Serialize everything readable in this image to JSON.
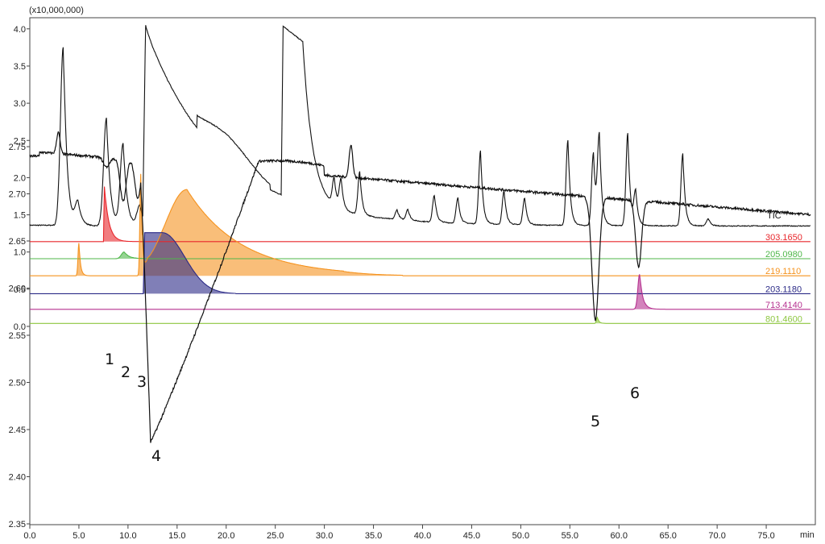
{
  "chart_data": {
    "type": "line",
    "scale_label": "(x10,000,000)",
    "x_unit": "min",
    "xlim": [
      0,
      80
    ],
    "x_ticks": [
      "0.0",
      "5.0",
      "10.0",
      "15.0",
      "20.0",
      "25.0",
      "30.0",
      "35.0",
      "40.0",
      "45.0",
      "50.0",
      "55.0",
      "60.0",
      "65.0",
      "70.0",
      "75.0"
    ],
    "y_upper_ticks": [
      "0.0",
      "0.5",
      "1.0",
      "1.5",
      "2.0",
      "2.5",
      "3.0",
      "3.5",
      "4.0"
    ],
    "y_lower_ticks": [
      "2.35",
      "2.40",
      "2.45",
      "2.50",
      "2.55",
      "2.60",
      "2.65",
      "2.70",
      "2.75"
    ],
    "tic": {
      "name": "TIC",
      "color": "#111111",
      "baseline": 1.35,
      "peaks": [
        {
          "x": 3.4,
          "y": 3.75
        },
        {
          "x": 4.9,
          "y": 1.65
        },
        {
          "x": 7.8,
          "y": 2.8
        },
        {
          "x": 9.5,
          "y": 2.45
        },
        {
          "x": 11.2,
          "y": 1.62
        },
        {
          "x": 31.0,
          "y": 1.72
        },
        {
          "x": 31.7,
          "y": 1.74
        },
        {
          "x": 33.6,
          "y": 1.93
        },
        {
          "x": 37.4,
          "y": 1.48
        },
        {
          "x": 38.5,
          "y": 1.5
        },
        {
          "x": 41.2,
          "y": 1.71
        },
        {
          "x": 43.6,
          "y": 1.69
        },
        {
          "x": 45.9,
          "y": 2.33
        },
        {
          "x": 48.3,
          "y": 1.8
        },
        {
          "x": 50.4,
          "y": 1.71
        },
        {
          "x": 54.8,
          "y": 2.5
        },
        {
          "x": 57.4,
          "y": 2.33
        },
        {
          "x": 58.0,
          "y": 2.53
        },
        {
          "x": 60.9,
          "y": 2.6
        },
        {
          "x": 61.7,
          "y": 1.8
        },
        {
          "x": 66.5,
          "y": 2.32
        },
        {
          "x": 69.1,
          "y": 1.45
        }
      ],
      "plateaus": [
        {
          "start": 11.5,
          "top": 4.1,
          "description": "tail decays to 1.4 by 24.5"
        },
        {
          "start": 25.8,
          "top": 3.63,
          "end": 27.8,
          "decay_end": 31.0
        }
      ]
    },
    "series": [
      {
        "name": "303.1650",
        "color": "#e8262b",
        "baseline": 1.14,
        "peaks": [
          {
            "x": 7.7,
            "y": 1.88
          }
        ]
      },
      {
        "name": "205.0980",
        "color": "#4fb74a",
        "baseline": 0.91,
        "peaks": [
          {
            "x": 9.6,
            "y": 1.0
          }
        ]
      },
      {
        "name": "219.1110",
        "color": "#f5931f",
        "baseline": 0.68,
        "peaks": [
          {
            "x": 5.0,
            "y": 1.12
          },
          {
            "x": 11.3,
            "y": 2.05
          },
          {
            "x": 16.0,
            "y": 1.84
          }
        ]
      },
      {
        "name": "203.1180",
        "color": "#2b2a87",
        "baseline": 0.44,
        "peaks": [
          {
            "x": 13.5,
            "y": 1.26
          }
        ]
      },
      {
        "name": "713.4140",
        "color": "#b5318f",
        "baseline": 0.23,
        "peaks": [
          {
            "x": 62.1,
            "y": 0.7
          }
        ]
      },
      {
        "name": "801.4600",
        "color": "#8dc63f",
        "baseline": 0.04,
        "peaks": [
          {
            "x": 57.8,
            "y": 0.12
          }
        ]
      }
    ],
    "lower_trace": {
      "color": "#111111",
      "baseline_start": 2.745,
      "baseline_end": 2.678,
      "dips": [
        {
          "label": "1",
          "x": 7.8,
          "y": 2.735
        },
        {
          "label": "2",
          "x": 9.5,
          "y": 2.7
        },
        {
          "label": "3",
          "x": 11.0,
          "y": 2.705
        },
        {
          "label": "4",
          "x": 12.5,
          "y": 2.447
        },
        {
          "label": "5",
          "x": 57.6,
          "y": 2.615
        },
        {
          "label": "6",
          "x": 62.0,
          "y": 2.675
        }
      ],
      "bumps": [
        {
          "x": 2.9,
          "y": 2.77
        },
        {
          "x": 32.7,
          "y": 2.765
        }
      ]
    },
    "peak_labels": [
      "1",
      "2",
      "3",
      "4",
      "5",
      "6"
    ]
  }
}
